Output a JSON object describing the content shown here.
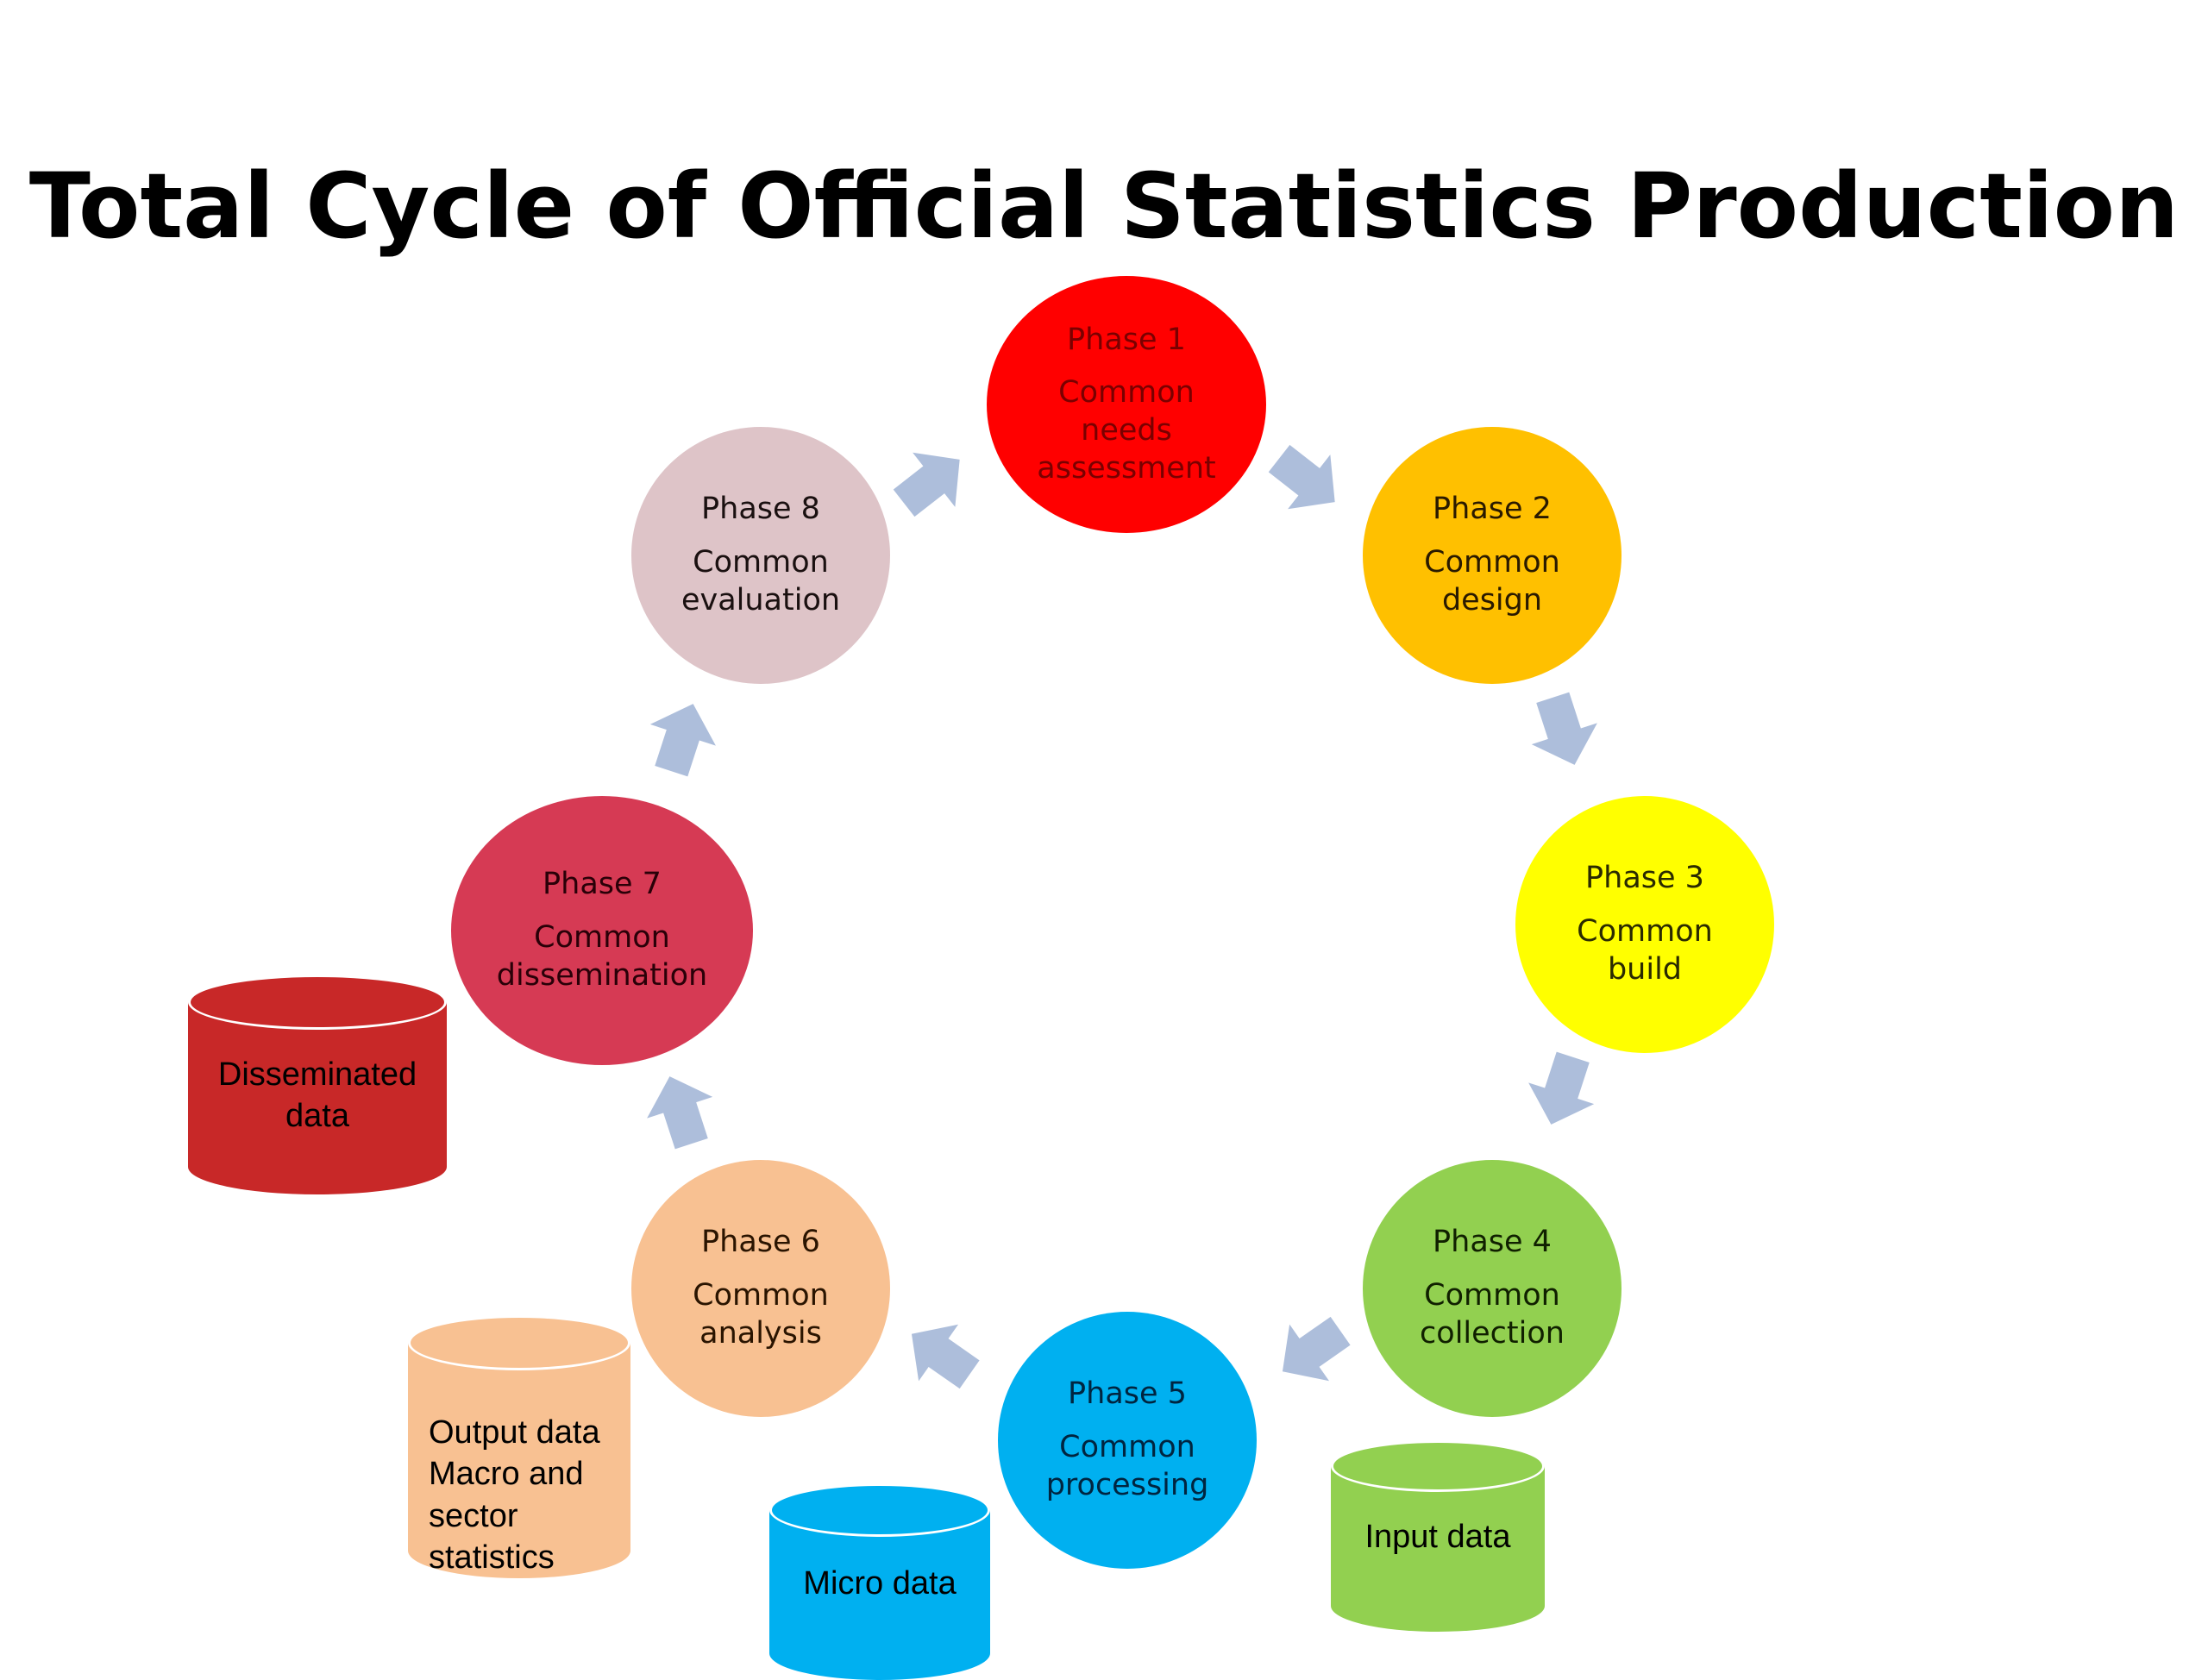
{
  "title": "Total Cycle of Official Statistics Production",
  "phases": [
    {
      "phase": "Phase 1",
      "name": "Common\nneeds\nassessment",
      "color": "#ff0000"
    },
    {
      "phase": "Phase 2",
      "name": "Common\ndesign",
      "color": "#ffc000"
    },
    {
      "phase": "Phase 3",
      "name": "Common\nbuild",
      "color": "#ffff00"
    },
    {
      "phase": "Phase 4",
      "name": "Common\ncollection",
      "color": "#92d050"
    },
    {
      "phase": "Phase 5",
      "name": "Common\nprocessing",
      "color": "#00b0f0"
    },
    {
      "phase": "Phase 6",
      "name": "Common\nanalysis",
      "color": "#f8c192"
    },
    {
      "phase": "Phase 7",
      "name": "Common\ndissemination",
      "color": "#d63a54"
    },
    {
      "phase": "Phase 8",
      "name": "Common\nevaluation",
      "color": "#dec4c8"
    }
  ],
  "data_stores": [
    {
      "label": "Input data",
      "color": "#92d050"
    },
    {
      "label": "Micro data",
      "color": "#00b0f0"
    },
    {
      "label": "Output data\nMacro and\nsector\nstatistics",
      "color": "#f8c192"
    },
    {
      "label": "Disseminated\ndata",
      "color": "#c82828"
    }
  ],
  "arrow_color": "#adbedb"
}
